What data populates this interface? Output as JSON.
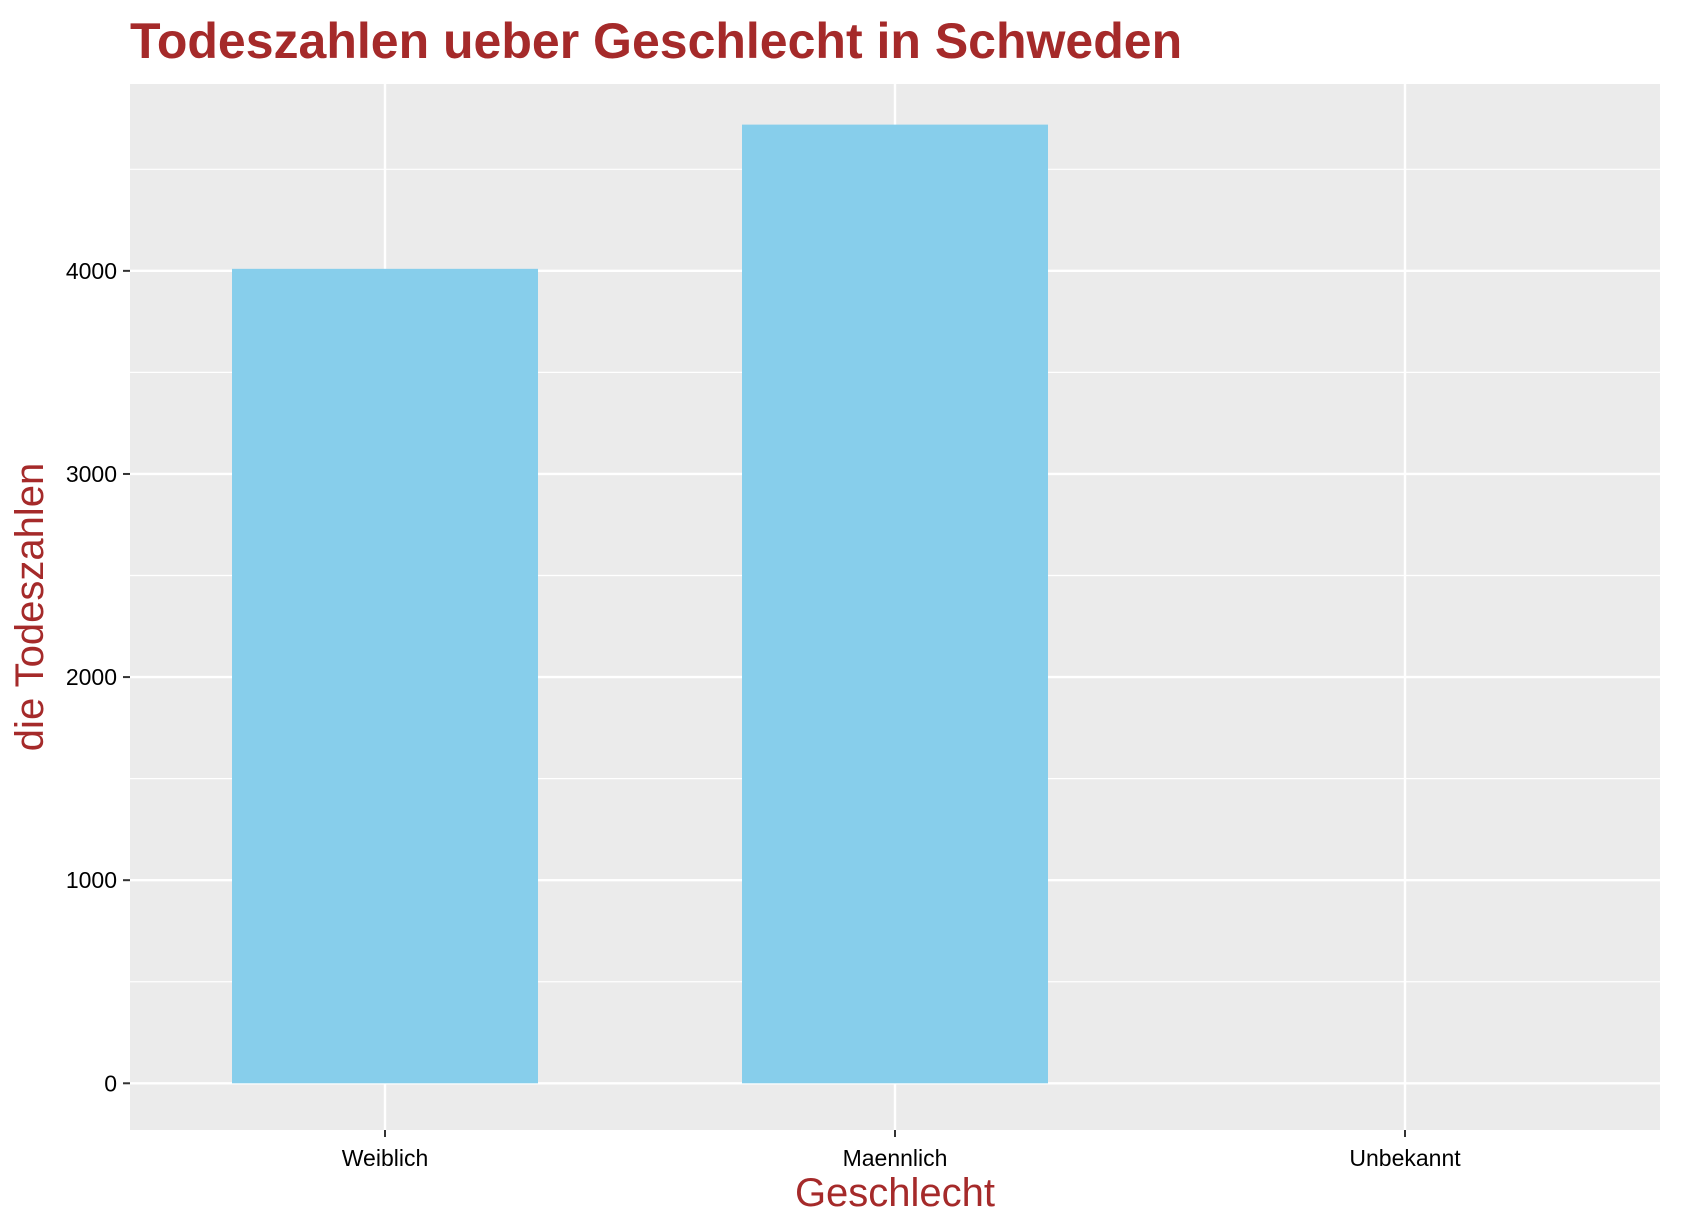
{
  "colors": {
    "title": "#A52A2A",
    "axis_title": "#A52A2A",
    "panel_bg": "#EBEBEB",
    "grid": "#FFFFFF",
    "bar_fill": "#87CEEB",
    "tick_text": "#000000"
  },
  "chart_data": {
    "type": "bar",
    "title": "Todeszahlen ueber Geschlecht in Schweden",
    "xlabel": "Geschlecht",
    "ylabel": "die Todeszahlen",
    "categories": [
      "Weiblich",
      "Maennlich",
      "Unbekannt"
    ],
    "values": [
      4010,
      4720,
      0
    ],
    "ylim": [
      -230,
      4920
    ],
    "yticks": [
      0,
      1000,
      2000,
      3000,
      4000
    ],
    "ytick_labels": [
      "0",
      "1000",
      "2000",
      "3000",
      "4000"
    ],
    "grid": true,
    "legend": "none"
  }
}
